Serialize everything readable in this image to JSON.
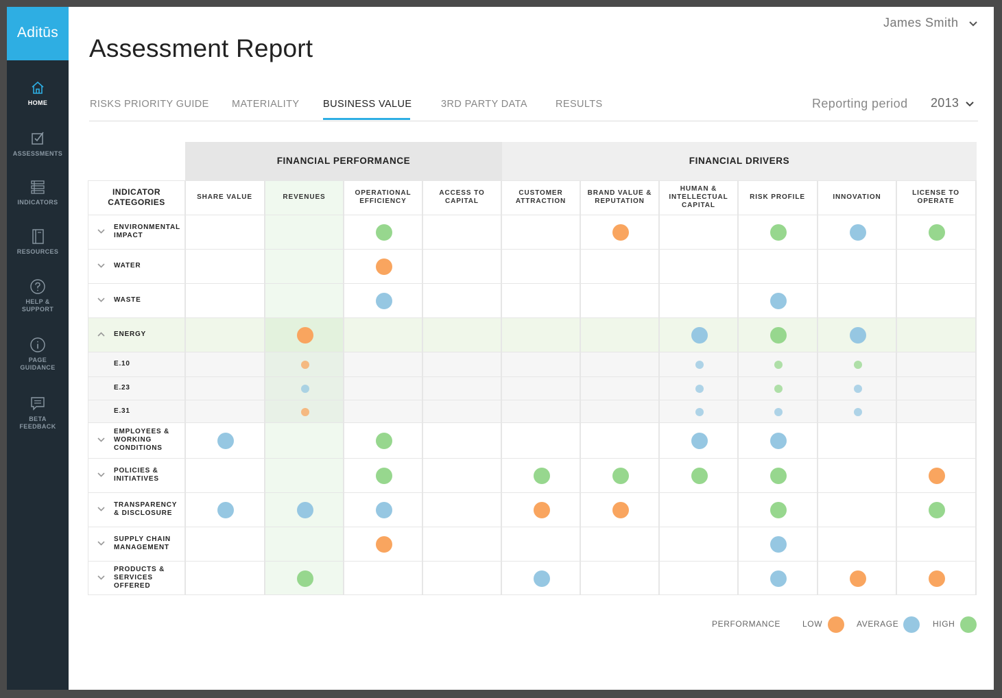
{
  "app": {
    "logo": "Aditūs",
    "user_name": "James Smith"
  },
  "sidebar": {
    "items": [
      {
        "label": "HOME",
        "icon": "home-icon"
      },
      {
        "label": "ASSESSMENTS",
        "icon": "checkbox-icon"
      },
      {
        "label": "INDICATORS",
        "icon": "list-icon"
      },
      {
        "label": "RESOURCES",
        "icon": "book-icon"
      },
      {
        "label": "HELP & SUPPORT",
        "icon": "question-icon"
      },
      {
        "label": "PAGE GUIDANCE",
        "icon": "info-icon"
      },
      {
        "label": "BETA FEEDBACK",
        "icon": "chat-icon"
      }
    ]
  },
  "page": {
    "title": "Assessment Report"
  },
  "tabs": [
    {
      "label": "RISKS PRIORITY GUIDE"
    },
    {
      "label": "MATERIALITY"
    },
    {
      "label": "BUSINESS VALUE"
    },
    {
      "label": "3RD PARTY DATA"
    },
    {
      "label": "RESULTS"
    }
  ],
  "active_tab": "BUSINESS VALUE",
  "reporting_period": {
    "label": "Reporting period",
    "value": "2013"
  },
  "colors": {
    "low": "#f9a55f",
    "average": "#96c7e2",
    "high": "#97d78e",
    "accent": "#2eaee3",
    "sidebar": "#202c35"
  },
  "table": {
    "indicator_header": "INDICATOR CATEGORIES",
    "groups": [
      {
        "label": "FINANCIAL PERFORMANCE"
      },
      {
        "label": "FINANCIAL DRIVERS"
      }
    ],
    "columns": [
      {
        "label": "SHARE VALUE"
      },
      {
        "label": "REVENUES"
      },
      {
        "label": "OPERATIONAL EFFICIENCY"
      },
      {
        "label": "ACCESS TO CAPITAL"
      },
      {
        "label": "CUSTOMER ATTRACTION"
      },
      {
        "label": "BRAND VALUE & REPUTATION"
      },
      {
        "label": "HUMAN & INTELLECTUAL CAPITAL"
      },
      {
        "label": "RISK PROFILE"
      },
      {
        "label": "INNOVATION"
      },
      {
        "label": "LICENSE TO OPERATE"
      }
    ],
    "highlighted_column": "REVENUES",
    "rows": [
      {
        "label": "ENVIRONMENTAL IMPACT",
        "expanded": false,
        "cells": [
          "",
          "",
          "high",
          "",
          "",
          "low",
          "",
          "high",
          "average",
          "high"
        ]
      },
      {
        "label": "WATER",
        "expanded": false,
        "cells": [
          "",
          "",
          "low",
          "",
          "",
          "",
          "",
          "",
          "",
          ""
        ]
      },
      {
        "label": "WASTE",
        "expanded": false,
        "cells": [
          "",
          "",
          "average",
          "",
          "",
          "",
          "",
          "average",
          "",
          ""
        ]
      },
      {
        "label": "ENERGY",
        "expanded": true,
        "cells": [
          "",
          "low",
          "",
          "",
          "",
          "",
          "average",
          "high",
          "average",
          ""
        ]
      },
      {
        "label": "E.10",
        "sub": true,
        "cells": [
          "",
          "low",
          "",
          "",
          "",
          "",
          "average",
          "high",
          "high",
          ""
        ]
      },
      {
        "label": "E.23",
        "sub": true,
        "cells": [
          "",
          "average",
          "",
          "",
          "",
          "",
          "average",
          "high",
          "average",
          ""
        ]
      },
      {
        "label": "E.31",
        "sub": true,
        "cells": [
          "",
          "low",
          "",
          "",
          "",
          "",
          "average",
          "average",
          "average",
          ""
        ]
      },
      {
        "label": "EMPLOYEES & WORKING CONDITIONS",
        "expanded": false,
        "cells": [
          "average",
          "",
          "high",
          "",
          "",
          "",
          "average",
          "average",
          "",
          ""
        ]
      },
      {
        "label": "POLICIES & INITIATIVES",
        "expanded": false,
        "cells": [
          "",
          "",
          "high",
          "",
          "high",
          "high",
          "high",
          "high",
          "",
          "low"
        ]
      },
      {
        "label": "TRANSPARENCY & DISCLOSURE",
        "expanded": false,
        "cells": [
          "average",
          "average",
          "average",
          "",
          "low",
          "low",
          "",
          "high",
          "",
          "high"
        ]
      },
      {
        "label": "SUPPLY CHAIN MANAGEMENT",
        "expanded": false,
        "cells": [
          "",
          "",
          "low",
          "",
          "",
          "",
          "",
          "average",
          "",
          ""
        ]
      },
      {
        "label": "PRODUCTS & SERVICES OFFERED",
        "expanded": false,
        "cells": [
          "",
          "high",
          "",
          "",
          "average",
          "",
          "",
          "average",
          "low",
          "low"
        ]
      }
    ]
  },
  "legend": {
    "title": "PERFORMANCE",
    "low": "LOW",
    "average": "AVERAGE",
    "high": "HIGH"
  }
}
